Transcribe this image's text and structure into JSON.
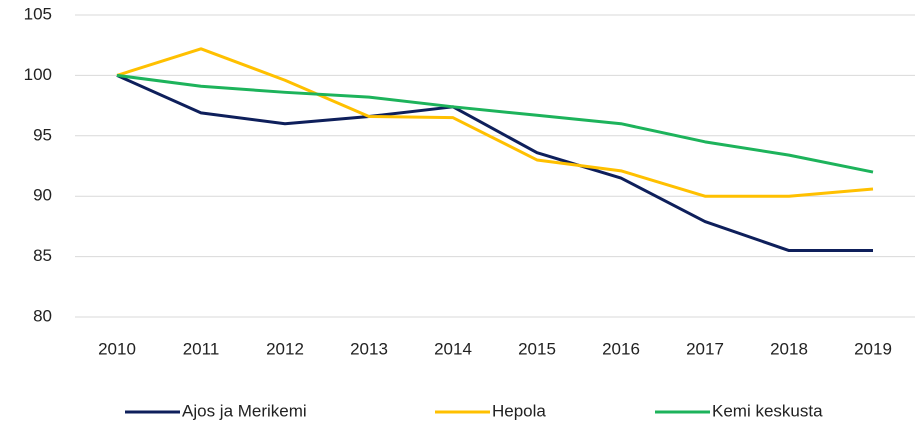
{
  "chart_data": {
    "type": "line",
    "categories": [
      "2010",
      "2011",
      "2012",
      "2013",
      "2014",
      "2015",
      "2016",
      "2017",
      "2018",
      "2019"
    ],
    "series": [
      {
        "name": "Ajos ja Merikemi",
        "color": "#0e1f5b",
        "values": [
          100,
          96.9,
          96.0,
          96.6,
          97.4,
          93.6,
          91.5,
          87.9,
          85.5,
          85.5
        ]
      },
      {
        "name": "Hepola",
        "color": "#ffc000",
        "values": [
          100,
          102.2,
          99.6,
          96.6,
          96.5,
          93.0,
          92.1,
          90.0,
          90.0,
          90.6
        ]
      },
      {
        "name": "Kemi keskusta",
        "color": "#1db35b",
        "values": [
          100,
          99.1,
          98.6,
          98.2,
          97.4,
          96.7,
          96.0,
          94.5,
          93.4,
          92.0
        ]
      }
    ],
    "ylim": [
      80,
      105
    ],
    "yticks": [
      80,
      85,
      90,
      95,
      100,
      105
    ],
    "grid": true,
    "legend": "bottom"
  }
}
